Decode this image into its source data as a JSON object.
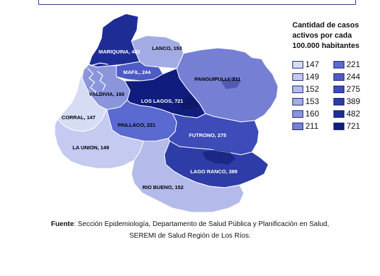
{
  "legend": {
    "title_lines": [
      "Cantidad de casos",
      "activos por cada",
      "100.000 habitantes"
    ],
    "entries": [
      {
        "value": "147",
        "color": "#d7dcf5"
      },
      {
        "value": "221",
        "color": "#5a6ad0"
      },
      {
        "value": "149",
        "color": "#c4caf0"
      },
      {
        "value": "244",
        "color": "#4d5cc4"
      },
      {
        "value": "152",
        "color": "#b4bbeb"
      },
      {
        "value": "275",
        "color": "#3d4cb8"
      },
      {
        "value": "153",
        "color": "#a3abe5"
      },
      {
        "value": "389",
        "color": "#2d3ca6"
      },
      {
        "value": "160",
        "color": "#8b95db"
      },
      {
        "value": "482",
        "color": "#1e2d96"
      },
      {
        "value": "211",
        "color": "#7580d4"
      },
      {
        "value": "721",
        "color": "#101d7e"
      }
    ]
  },
  "regions": [
    {
      "key": "mariquina",
      "label": "MARIQUINA, 482",
      "value": 482,
      "color": "#1e2d96",
      "label_color": "#ffffff"
    },
    {
      "key": "lanco",
      "label": "LANCO, 153",
      "value": 153,
      "color": "#a3abe5",
      "label_color": "#000000"
    },
    {
      "key": "mafil",
      "label": "MAFIL, 244",
      "value": 244,
      "color": "#4d5cc4",
      "label_color": "#ffffff"
    },
    {
      "key": "panguipulli",
      "label": "PANGUIPULLI, 211",
      "value": 211,
      "color": "#7580d4",
      "label_color": "#000000"
    },
    {
      "key": "valdivia",
      "label": "VALDIVIA, 160",
      "value": 160,
      "color": "#8b95db",
      "label_color": "#000000"
    },
    {
      "key": "los_lagos",
      "label": "LOS LAGOS, 721",
      "value": 721,
      "color": "#101d7e",
      "label_color": "#ffffff"
    },
    {
      "key": "corral",
      "label": "CORRAL, 147",
      "value": 147,
      "color": "#d7dcf5",
      "label_color": "#000000"
    },
    {
      "key": "paillaco",
      "label": "PAILLACO, 221",
      "value": 221,
      "color": "#5a6ad0",
      "label_color": "#000000"
    },
    {
      "key": "futrono",
      "label": "FUTRONO, 275",
      "value": 275,
      "color": "#3d4cb8",
      "label_color": "#ffffff"
    },
    {
      "key": "la_union",
      "label": "LA UNION, 149",
      "value": 149,
      "color": "#c4caf0",
      "label_color": "#000000"
    },
    {
      "key": "lago_ranco",
      "label": "LAGO RANCO, 389",
      "value": 389,
      "color": "#2d3ca6",
      "label_color": "#ffffff"
    },
    {
      "key": "rio_bueno",
      "label": "RIO BUENO, 152",
      "value": 152,
      "color": "#b4bbeb",
      "label_color": "#000000"
    }
  ],
  "caption": {
    "source_label": "Fuente",
    "line1": ": Sección Epidemiología, Departamento de Salud Pública y Planificación en Salud,",
    "line2": "SEREMI de Salud Región de Los Ríos."
  }
}
